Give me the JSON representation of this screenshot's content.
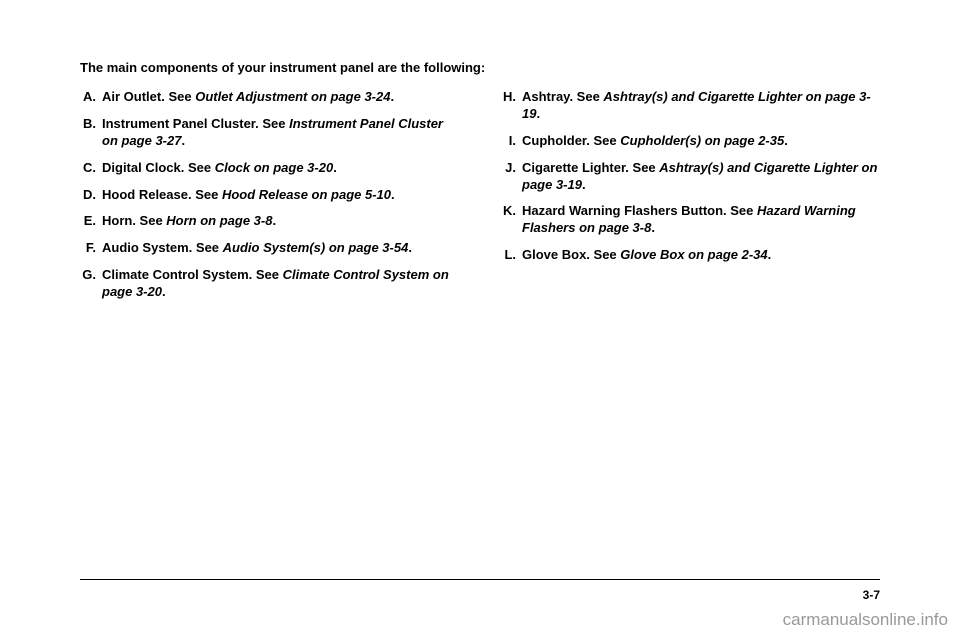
{
  "intro": "The main components of your instrument panel are the following:",
  "left": [
    {
      "letter": "A.",
      "label": "Air Outlet. See ",
      "ref": "Outlet Adjustment on page 3-24",
      "tail": "."
    },
    {
      "letter": "B.",
      "label": "Instrument Panel Cluster. See ",
      "ref": "Instrument Panel Cluster on page 3-27",
      "tail": "."
    },
    {
      "letter": "C.",
      "label": "Digital Clock. See ",
      "ref": "Clock on page 3-20",
      "tail": "."
    },
    {
      "letter": "D.",
      "label": "Hood Release. See ",
      "ref": "Hood Release on page 5-10",
      "tail": "."
    },
    {
      "letter": "E.",
      "label": "Horn. See ",
      "ref": "Horn on page 3-8",
      "tail": "."
    },
    {
      "letter": "F.",
      "label": "Audio System. See ",
      "ref": "Audio System(s) on page 3-54",
      "tail": "."
    },
    {
      "letter": "G.",
      "label": "Climate Control System. See ",
      "ref": "Climate Control System on page 3-20",
      "tail": "."
    }
  ],
  "right": [
    {
      "letter": "H.",
      "label": "Ashtray. See ",
      "ref": "Ashtray(s) and Cigarette Lighter on page 3-19",
      "tail": "."
    },
    {
      "letter": "I.",
      "label": "Cupholder. See ",
      "ref": "Cupholder(s) on page 2-35",
      "tail": "."
    },
    {
      "letter": "J.",
      "label": "Cigarette Lighter. See ",
      "ref": "Ashtray(s) and Cigarette Lighter on page 3-19",
      "tail": "."
    },
    {
      "letter": "K.",
      "label": "Hazard Warning Flashers Button. See ",
      "ref": "Hazard Warning Flashers on page 3-8",
      "tail": "."
    },
    {
      "letter": "L.",
      "label": "Glove Box. See ",
      "ref": "Glove Box on page 2-34",
      "tail": "."
    }
  ],
  "pageNum": "3-7",
  "watermark": "carmanualsonline.info"
}
